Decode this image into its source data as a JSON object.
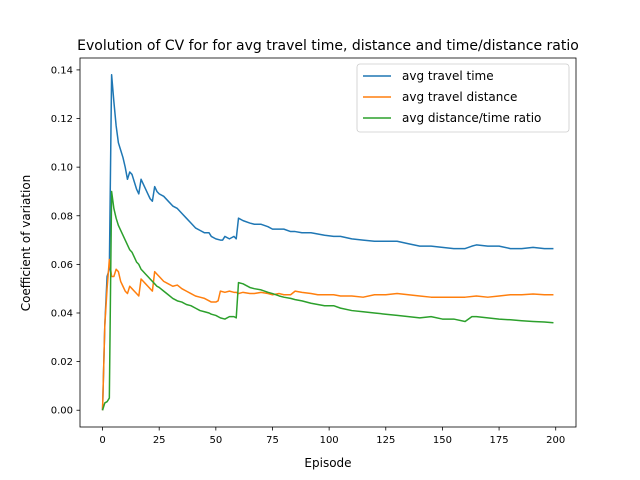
{
  "chart_data": {
    "type": "line",
    "title": "Evolution of CV for for avg travel time, distance and time/distance ratio",
    "xlabel": "Episode",
    "ylabel": "Coefficient of variation",
    "xlim": [
      -9.95,
      208.95
    ],
    "ylim": [
      -0.0069,
      0.1449
    ],
    "xticks": [
      0,
      25,
      50,
      75,
      100,
      125,
      150,
      175,
      200
    ],
    "yticks": [
      0.0,
      0.02,
      0.04,
      0.06,
      0.08,
      0.1,
      0.12,
      0.14
    ],
    "ytick_labels": [
      "0.00",
      "0.02",
      "0.04",
      "0.06",
      "0.08",
      "0.10",
      "0.12",
      "0.14"
    ],
    "grid": false,
    "legend_position": "top-right",
    "series": [
      {
        "name": "avg travel time",
        "color": "#1f77b4",
        "points": [
          [
            0,
            0.0
          ],
          [
            1,
            0.035
          ],
          [
            2,
            0.055
          ],
          [
            3,
            0.058
          ],
          [
            4,
            0.138
          ],
          [
            5,
            0.127
          ],
          [
            6,
            0.117
          ],
          [
            7,
            0.11
          ],
          [
            8,
            0.107
          ],
          [
            9,
            0.104
          ],
          [
            10,
            0.1
          ],
          [
            11,
            0.095
          ],
          [
            12,
            0.098
          ],
          [
            13,
            0.097
          ],
          [
            14,
            0.094
          ],
          [
            15,
            0.091
          ],
          [
            16,
            0.089
          ],
          [
            17,
            0.095
          ],
          [
            18,
            0.093
          ],
          [
            19,
            0.091
          ],
          [
            20,
            0.089
          ],
          [
            21,
            0.087
          ],
          [
            22,
            0.086
          ],
          [
            23,
            0.092
          ],
          [
            24,
            0.09
          ],
          [
            25,
            0.089
          ],
          [
            27,
            0.088
          ],
          [
            29,
            0.086
          ],
          [
            31,
            0.084
          ],
          [
            33,
            0.083
          ],
          [
            35,
            0.081
          ],
          [
            37,
            0.079
          ],
          [
            39,
            0.077
          ],
          [
            41,
            0.075
          ],
          [
            43,
            0.074
          ],
          [
            45,
            0.073
          ],
          [
            47,
            0.073
          ],
          [
            48,
            0.0715
          ],
          [
            50,
            0.0705
          ],
          [
            52,
            0.07
          ],
          [
            53,
            0.07
          ],
          [
            54,
            0.0715
          ],
          [
            56,
            0.0705
          ],
          [
            57,
            0.071
          ],
          [
            58,
            0.0715
          ],
          [
            59,
            0.0705
          ],
          [
            60,
            0.079
          ],
          [
            62,
            0.078
          ],
          [
            65,
            0.077
          ],
          [
            67,
            0.0765
          ],
          [
            70,
            0.0765
          ],
          [
            73,
            0.0755
          ],
          [
            75,
            0.0745
          ],
          [
            78,
            0.0745
          ],
          [
            80,
            0.0745
          ],
          [
            83,
            0.0735
          ],
          [
            85,
            0.0735
          ],
          [
            88,
            0.073
          ],
          [
            92,
            0.073
          ],
          [
            95,
            0.0725
          ],
          [
            98,
            0.072
          ],
          [
            102,
            0.0715
          ],
          [
            105,
            0.0715
          ],
          [
            110,
            0.0705
          ],
          [
            115,
            0.07
          ],
          [
            120,
            0.0695
          ],
          [
            125,
            0.0695
          ],
          [
            130,
            0.0695
          ],
          [
            135,
            0.0685
          ],
          [
            140,
            0.0675
          ],
          [
            145,
            0.0675
          ],
          [
            150,
            0.067
          ],
          [
            155,
            0.0665
          ],
          [
            160,
            0.0665
          ],
          [
            163,
            0.0675
          ],
          [
            165,
            0.068
          ],
          [
            170,
            0.0675
          ],
          [
            175,
            0.0675
          ],
          [
            180,
            0.0665
          ],
          [
            185,
            0.0665
          ],
          [
            190,
            0.067
          ],
          [
            195,
            0.0665
          ],
          [
            199,
            0.0665
          ]
        ]
      },
      {
        "name": "avg travel distance",
        "color": "#ff7f0e",
        "points": [
          [
            0,
            0.0
          ],
          [
            1,
            0.035
          ],
          [
            2,
            0.05
          ],
          [
            3,
            0.062
          ],
          [
            4,
            0.055
          ],
          [
            5,
            0.055
          ],
          [
            6,
            0.058
          ],
          [
            7,
            0.057
          ],
          [
            8,
            0.053
          ],
          [
            9,
            0.051
          ],
          [
            10,
            0.049
          ],
          [
            11,
            0.048
          ],
          [
            12,
            0.051
          ],
          [
            13,
            0.05
          ],
          [
            14,
            0.049
          ],
          [
            15,
            0.048
          ],
          [
            16,
            0.047
          ],
          [
            17,
            0.054
          ],
          [
            18,
            0.053
          ],
          [
            19,
            0.052
          ],
          [
            20,
            0.051
          ],
          [
            21,
            0.05
          ],
          [
            22,
            0.049
          ],
          [
            23,
            0.057
          ],
          [
            24,
            0.056
          ],
          [
            25,
            0.055
          ],
          [
            27,
            0.053
          ],
          [
            29,
            0.052
          ],
          [
            31,
            0.051
          ],
          [
            33,
            0.0515
          ],
          [
            35,
            0.05
          ],
          [
            37,
            0.049
          ],
          [
            39,
            0.048
          ],
          [
            41,
            0.047
          ],
          [
            43,
            0.0465
          ],
          [
            45,
            0.046
          ],
          [
            47,
            0.045
          ],
          [
            48,
            0.0445
          ],
          [
            50,
            0.0445
          ],
          [
            51,
            0.045
          ],
          [
            52,
            0.049
          ],
          [
            54,
            0.0485
          ],
          [
            56,
            0.049
          ],
          [
            58,
            0.0485
          ],
          [
            59,
            0.0485
          ],
          [
            60,
            0.048
          ],
          [
            62,
            0.0485
          ],
          [
            65,
            0.048
          ],
          [
            67,
            0.048
          ],
          [
            70,
            0.0485
          ],
          [
            73,
            0.048
          ],
          [
            75,
            0.0475
          ],
          [
            78,
            0.048
          ],
          [
            80,
            0.0475
          ],
          [
            83,
            0.0475
          ],
          [
            85,
            0.049
          ],
          [
            88,
            0.0485
          ],
          [
            92,
            0.048
          ],
          [
            95,
            0.0475
          ],
          [
            98,
            0.0475
          ],
          [
            102,
            0.0475
          ],
          [
            105,
            0.047
          ],
          [
            110,
            0.047
          ],
          [
            115,
            0.0465
          ],
          [
            120,
            0.0475
          ],
          [
            125,
            0.0475
          ],
          [
            130,
            0.048
          ],
          [
            135,
            0.0475
          ],
          [
            140,
            0.047
          ],
          [
            145,
            0.0465
          ],
          [
            150,
            0.0465
          ],
          [
            155,
            0.0465
          ],
          [
            160,
            0.0465
          ],
          [
            165,
            0.047
          ],
          [
            170,
            0.0465
          ],
          [
            175,
            0.047
          ],
          [
            180,
            0.0475
          ],
          [
            185,
            0.0475
          ],
          [
            190,
            0.0478
          ],
          [
            195,
            0.0475
          ],
          [
            199,
            0.0475
          ]
        ]
      },
      {
        "name": "avg distance/time ratio",
        "color": "#2ca02c",
        "points": [
          [
            0,
            0.0
          ],
          [
            1,
            0.003
          ],
          [
            2,
            0.0035
          ],
          [
            3,
            0.005
          ],
          [
            4,
            0.09
          ],
          [
            5,
            0.083
          ],
          [
            6,
            0.079
          ],
          [
            7,
            0.076
          ],
          [
            8,
            0.074
          ],
          [
            9,
            0.072
          ],
          [
            10,
            0.07
          ],
          [
            11,
            0.068
          ],
          [
            12,
            0.066
          ],
          [
            13,
            0.065
          ],
          [
            14,
            0.063
          ],
          [
            15,
            0.061
          ],
          [
            16,
            0.06
          ],
          [
            17,
            0.058
          ],
          [
            18,
            0.057
          ],
          [
            19,
            0.056
          ],
          [
            20,
            0.055
          ],
          [
            21,
            0.054
          ],
          [
            22,
            0.053
          ],
          [
            23,
            0.052
          ],
          [
            24,
            0.051
          ],
          [
            25,
            0.0505
          ],
          [
            27,
            0.049
          ],
          [
            29,
            0.0475
          ],
          [
            31,
            0.046
          ],
          [
            33,
            0.045
          ],
          [
            35,
            0.0445
          ],
          [
            37,
            0.0435
          ],
          [
            39,
            0.043
          ],
          [
            41,
            0.042
          ],
          [
            43,
            0.041
          ],
          [
            45,
            0.0405
          ],
          [
            47,
            0.04
          ],
          [
            48,
            0.0395
          ],
          [
            50,
            0.039
          ],
          [
            52,
            0.038
          ],
          [
            54,
            0.0375
          ],
          [
            56,
            0.0385
          ],
          [
            58,
            0.0385
          ],
          [
            59,
            0.038
          ],
          [
            60,
            0.0525
          ],
          [
            62,
            0.052
          ],
          [
            65,
            0.0505
          ],
          [
            67,
            0.05
          ],
          [
            70,
            0.0495
          ],
          [
            73,
            0.0485
          ],
          [
            75,
            0.048
          ],
          [
            78,
            0.047
          ],
          [
            80,
            0.0465
          ],
          [
            83,
            0.046
          ],
          [
            85,
            0.0455
          ],
          [
            88,
            0.045
          ],
          [
            92,
            0.044
          ],
          [
            95,
            0.0435
          ],
          [
            98,
            0.043
          ],
          [
            102,
            0.043
          ],
          [
            105,
            0.042
          ],
          [
            110,
            0.041
          ],
          [
            115,
            0.0405
          ],
          [
            120,
            0.04
          ],
          [
            125,
            0.0395
          ],
          [
            130,
            0.039
          ],
          [
            135,
            0.0385
          ],
          [
            140,
            0.038
          ],
          [
            145,
            0.0385
          ],
          [
            150,
            0.0375
          ],
          [
            155,
            0.0375
          ],
          [
            160,
            0.0365
          ],
          [
            163,
            0.0385
          ],
          [
            165,
            0.0385
          ],
          [
            170,
            0.038
          ],
          [
            175,
            0.0375
          ],
          [
            180,
            0.0372
          ],
          [
            185,
            0.0368
          ],
          [
            190,
            0.0365
          ],
          [
            195,
            0.0363
          ],
          [
            199,
            0.036
          ]
        ]
      }
    ]
  }
}
